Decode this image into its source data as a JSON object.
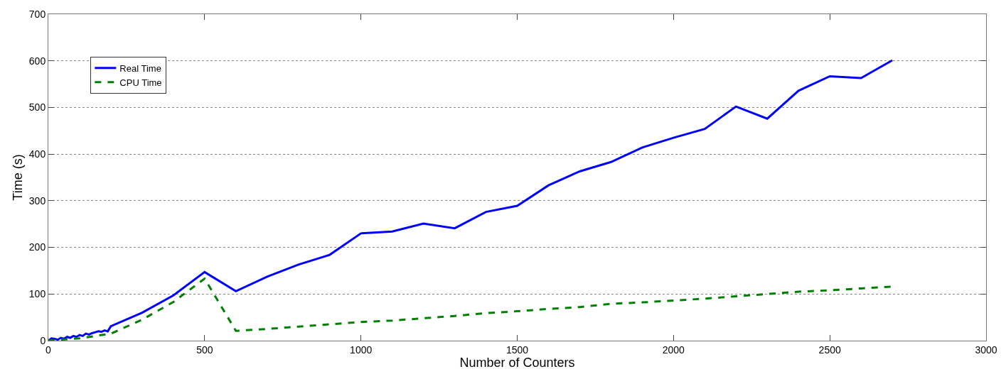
{
  "chart_data": {
    "type": "line",
    "xlabel": "Number of Counters",
    "ylabel": "Time (s)",
    "xlim": [
      0,
      3000
    ],
    "xticks": [
      0,
      500,
      1000,
      1500,
      2000,
      2500,
      3000
    ],
    "ylim": [
      0,
      700
    ],
    "yticks": [
      0,
      100,
      200,
      300,
      400,
      500,
      600,
      700
    ],
    "grid": "y",
    "legend": "top left",
    "marker": "none",
    "series": [
      {
        "name": "Real Time",
        "color": "#0000ff",
        "line_style": "solid",
        "x": [
          0,
          10,
          20,
          30,
          40,
          50,
          60,
          70,
          80,
          90,
          100,
          110,
          120,
          130,
          140,
          150,
          160,
          170,
          180,
          190,
          200,
          300,
          400,
          500,
          600,
          700,
          800,
          900,
          1000,
          1100,
          1200,
          1300,
          1400,
          1500,
          1600,
          1700,
          1800,
          1900,
          2000,
          2100,
          2200,
          2300,
          2400,
          2500,
          2600,
          2700
        ],
        "values": [
          0,
          5,
          4,
          2,
          6,
          4,
          8,
          6,
          10,
          8,
          12,
          10,
          15,
          13,
          16,
          18,
          20,
          19,
          22,
          20,
          31,
          60,
          97,
          147,
          106,
          137,
          163,
          184,
          230,
          234,
          251,
          241,
          276,
          289,
          333,
          363,
          383,
          414,
          435,
          454,
          502,
          476,
          536,
          567,
          563,
          601
        ]
      },
      {
        "name": "CPU Time",
        "color": "#008000",
        "line_style": "dashed",
        "x": [
          0,
          100,
          200,
          300,
          400,
          500,
          600,
          700,
          800,
          900,
          1000,
          1100,
          1200,
          1300,
          1400,
          1500,
          1600,
          1700,
          1800,
          1900,
          2000,
          2100,
          2200,
          2300,
          2400,
          2500,
          2600,
          2700
        ],
        "values": [
          0,
          5,
          15,
          45,
          83,
          133,
          21,
          25,
          30,
          35,
          40,
          43,
          48,
          53,
          59,
          63,
          68,
          72,
          79,
          82,
          86,
          90,
          95,
          100,
          105,
          108,
          112,
          116
        ]
      }
    ]
  }
}
